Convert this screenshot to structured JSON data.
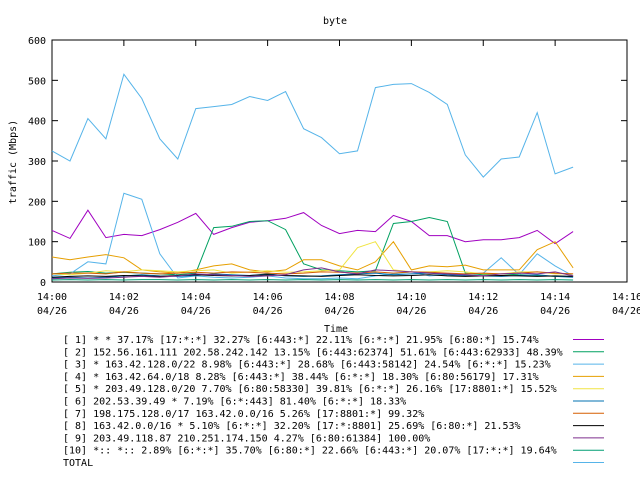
{
  "chart_data": {
    "type": "line",
    "title": "byte",
    "xlabel": "Time",
    "ylabel": "traffic (Mbps)",
    "ylim": [
      0,
      600
    ],
    "yticks": [
      0,
      100,
      200,
      300,
      400,
      500,
      600
    ],
    "xlim": [
      "14:00",
      "14:16"
    ],
    "xticks": [
      {
        "time": "14:00",
        "date": "04/26"
      },
      {
        "time": "14:02",
        "date": "04/26"
      },
      {
        "time": "14:04",
        "date": "04/26"
      },
      {
        "time": "14:06",
        "date": "04/26"
      },
      {
        "time": "14:08",
        "date": "04/26"
      },
      {
        "time": "14:10",
        "date": "04/26"
      },
      {
        "time": "14:12",
        "date": "04/26"
      },
      {
        "time": "14:14",
        "date": "04/26"
      },
      {
        "time": "14:16",
        "date": "04/26"
      }
    ],
    "grid": false,
    "legend_position": "bottom",
    "x": [
      "14:00:00",
      "14:00:30",
      "14:01:00",
      "14:01:30",
      "14:02:00",
      "14:02:30",
      "14:03:00",
      "14:03:30",
      "14:04:00",
      "14:04:30",
      "14:05:00",
      "14:05:30",
      "14:06:00",
      "14:06:30",
      "14:07:00",
      "14:07:30",
      "14:08:00",
      "14:08:30",
      "14:09:00",
      "14:09:30",
      "14:10:00",
      "14:10:30",
      "14:11:00",
      "14:11:30",
      "14:12:00",
      "14:12:30",
      "14:13:00",
      "14:13:30",
      "14:14:00",
      "14:14:30"
    ],
    "series": [
      {
        "name": "[ 1] * * 37.17%  [17:*:*] 32.27%  [6:443:*] 22.11%  [6:*:*] 21.95%  [6:80:*] 15.74%",
        "color": "#a000c0",
        "values": [
          128,
          108,
          178,
          110,
          118,
          115,
          130,
          148,
          170,
          118,
          135,
          148,
          152,
          158,
          172,
          140,
          120,
          128,
          125,
          165,
          150,
          115,
          115,
          100,
          105,
          105,
          110,
          128,
          95,
          125
        ]
      },
      {
        "name": "[ 2] 152.56.161.111 202.58.242.142 13.15%  [6:443:62374] 51.61% [6:443:62933] 48.39%",
        "color": "#00a060",
        "values": [
          20,
          24,
          26,
          22,
          24,
          22,
          20,
          18,
          22,
          135,
          138,
          150,
          152,
          130,
          45,
          30,
          28,
          25,
          28,
          145,
          150,
          160,
          150,
          22,
          18,
          20,
          18,
          16,
          14,
          14
        ]
      },
      {
        "name": "[ 3] * 163.42.128.0/22 8.98%  [6:443:*] 28.68% [6:443:58142] 24.54% [6:*:*] 15.23%",
        "color": "#56b4e9",
        "values": [
          15,
          20,
          50,
          45,
          220,
          205,
          70,
          10,
          15,
          12,
          10,
          12,
          15,
          10,
          8,
          8,
          10,
          8,
          15,
          20,
          25,
          15,
          18,
          20,
          22,
          60,
          18,
          70,
          40,
          15
        ]
      },
      {
        "name": "[ 4] * 163.42.64.0/18 8.28%  [6:443:*] 38.44% [6:*:*] 18.30% [6:80:56179] 17.31%",
        "color": "#e69f00",
        "values": [
          62,
          55,
          62,
          68,
          60,
          30,
          25,
          22,
          30,
          40,
          45,
          30,
          25,
          30,
          55,
          55,
          40,
          30,
          50,
          100,
          30,
          40,
          38,
          42,
          30,
          30,
          30,
          80,
          100,
          35
        ]
      },
      {
        "name": "[ 5] * 203.49.128.0/20 7.70%  [6:80:58330] 39.81% [6:*:*] 26.16% [17:8801:*] 15.52%",
        "color": "#f0e442",
        "values": [
          20,
          18,
          22,
          28,
          25,
          30,
          28,
          25,
          28,
          30,
          22,
          25,
          28,
          24,
          25,
          28,
          30,
          85,
          100,
          30,
          25,
          25,
          28,
          25,
          20,
          20,
          25,
          25,
          20,
          20
        ]
      },
      {
        "name": "[ 6] 202.53.39.49 * 7.19%  [6:*:443] 81.40% [6:*:*] 18.33%",
        "color": "#0072b2",
        "values": [
          10,
          12,
          10,
          12,
          15,
          18,
          15,
          14,
          16,
          20,
          18,
          16,
          20,
          15,
          14,
          15,
          18,
          20,
          22,
          18,
          20,
          22,
          18,
          16,
          15,
          14,
          16,
          18,
          14,
          12
        ]
      },
      {
        "name": "[ 7] 198.175.128.0/17 163.42.0.0/16 5.26%  [17:8801:*] 99.32%",
        "color": "#d55e00",
        "values": [
          20,
          22,
          22,
          20,
          25,
          22,
          20,
          22,
          24,
          22,
          25,
          24,
          22,
          20,
          22,
          25,
          24,
          22,
          25,
          22,
          25,
          24,
          22,
          20,
          22,
          20,
          22,
          25,
          22,
          20
        ]
      },
      {
        "name": "[ 8] 163.42.0.0/16 * 5.10%  [6:*:*] 32.20% [17:*:8801] 25.69% [6:80:*] 21.53%",
        "color": "#000000",
        "values": [
          12,
          14,
          15,
          14,
          16,
          15,
          14,
          16,
          18,
          16,
          15,
          16,
          18,
          16,
          15,
          14,
          16,
          18,
          16,
          15,
          16,
          18,
          15,
          14,
          15,
          16,
          15,
          14,
          15,
          14
        ]
      },
      {
        "name": "[ 9] 203.49.118.87 210.251.174.150 4.27%  [6:80:61384] 100.00%",
        "color": "#7e2f8e",
        "values": [
          8,
          10,
          9,
          10,
          12,
          14,
          12,
          15,
          20,
          18,
          16,
          14,
          15,
          18,
          30,
          35,
          25,
          20,
          30,
          28,
          25,
          22,
          20,
          18,
          15,
          20,
          22,
          20,
          25,
          15
        ]
      },
      {
        "name": "[10] *:: *:: 2.89%  [6:*:*] 35.70% [6:80:*] 22.66% [6:443:*] 20.07% [17:*:*] 19.64%",
        "color": "#009e73",
        "values": [
          5,
          6,
          5,
          6,
          5,
          6,
          6,
          5,
          6,
          5,
          6,
          5,
          6,
          5,
          6,
          5,
          6,
          5,
          6,
          5,
          6,
          5,
          6,
          5,
          6,
          5,
          6,
          5,
          6,
          5
        ]
      },
      {
        "name": "TOTAL",
        "color": "#56b4e9",
        "values": [
          325,
          300,
          405,
          355,
          515,
          455,
          355,
          305,
          430,
          435,
          440,
          460,
          450,
          472,
          380,
          358,
          318,
          325,
          482,
          490,
          492,
          470,
          440,
          315,
          260,
          305,
          310,
          420,
          268,
          285
        ]
      }
    ]
  }
}
